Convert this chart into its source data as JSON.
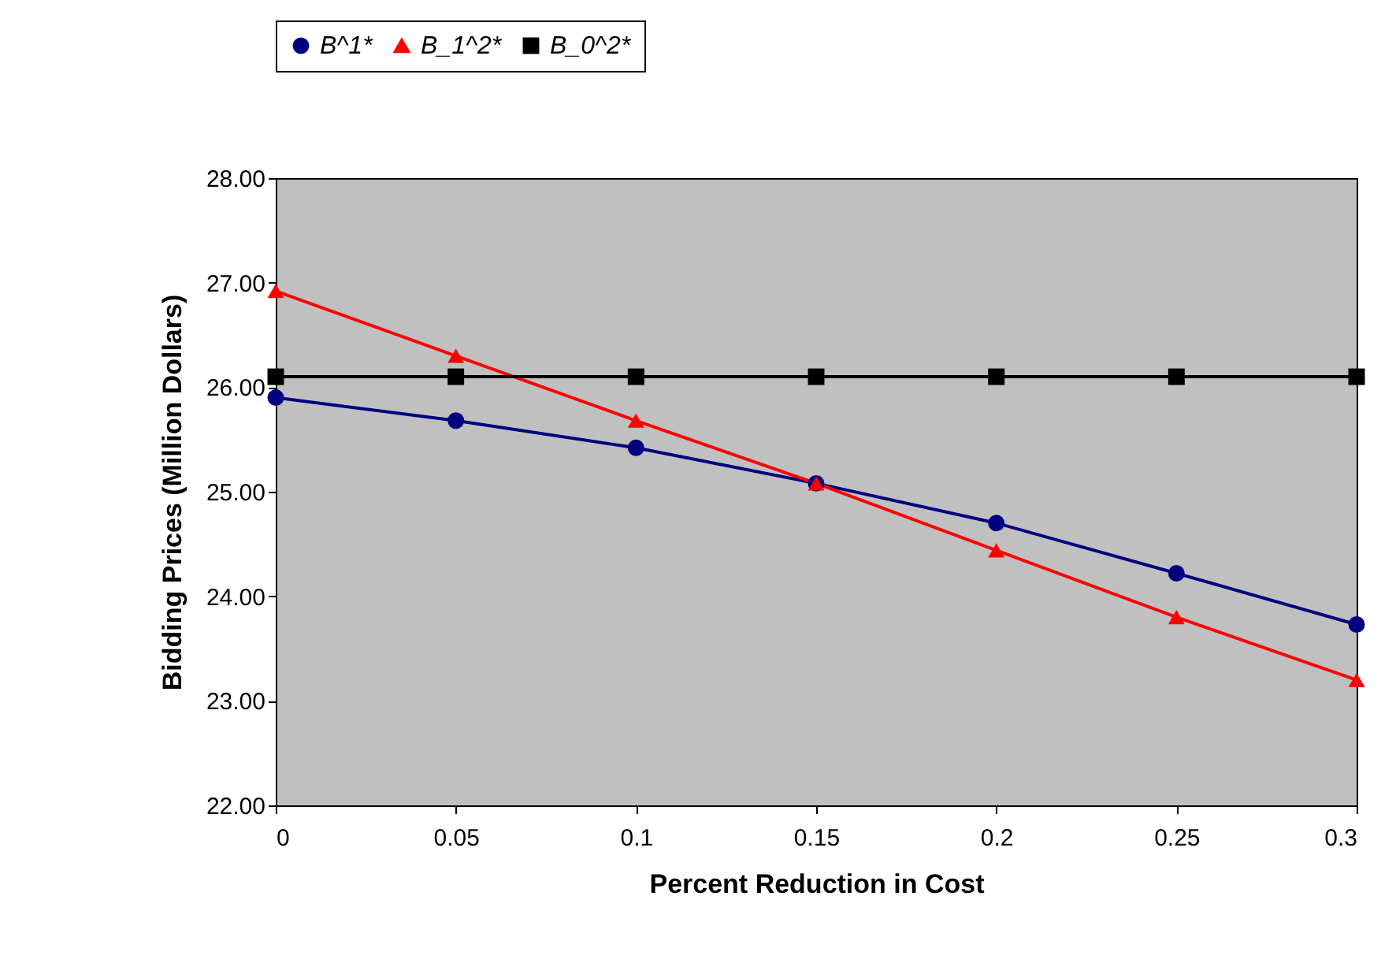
{
  "chart_data": {
    "type": "line",
    "xlabel": "Percent Reduction in Cost",
    "ylabel": "Bidding Prices (Million Dollars)",
    "x": [
      0,
      0.05,
      0.1,
      0.15,
      0.2,
      0.25,
      0.3
    ],
    "series": [
      {
        "name": "B^1*",
        "color": "#000080",
        "marker": "circle",
        "values": [
          25.9,
          25.68,
          25.42,
          25.08,
          24.7,
          24.22,
          23.73
        ]
      },
      {
        "name": "B_1^2*",
        "color": "#ff0000",
        "marker": "triangle",
        "values": [
          26.92,
          26.3,
          25.68,
          25.08,
          24.44,
          23.8,
          23.2
        ]
      },
      {
        "name": "B_0^2*",
        "color": "#000000",
        "marker": "square",
        "values": [
          26.1,
          26.1,
          26.1,
          26.1,
          26.1,
          26.1,
          26.1
        ]
      }
    ],
    "xlim": [
      0,
      0.3
    ],
    "xticks": [
      {
        "value": 0,
        "label": "0"
      },
      {
        "value": 0.05,
        "label": "0.05"
      },
      {
        "value": 0.1,
        "label": "0.1"
      },
      {
        "value": 0.15,
        "label": "0.15"
      },
      {
        "value": 0.2,
        "label": "0.2"
      },
      {
        "value": 0.25,
        "label": "0.25"
      },
      {
        "value": 0.3,
        "label": "0.3"
      }
    ],
    "ylim": [
      22,
      28
    ],
    "yticks": [
      {
        "value": 22,
        "label": "22.00"
      },
      {
        "value": 23,
        "label": "23.00"
      },
      {
        "value": 24,
        "label": "24.00"
      },
      {
        "value": 25,
        "label": "25.00"
      },
      {
        "value": 26,
        "label": "26.00"
      },
      {
        "value": 27,
        "label": "27.00"
      },
      {
        "value": 28,
        "label": "28.00"
      }
    ],
    "grid": false,
    "legend": "top",
    "line_style": "solid"
  }
}
